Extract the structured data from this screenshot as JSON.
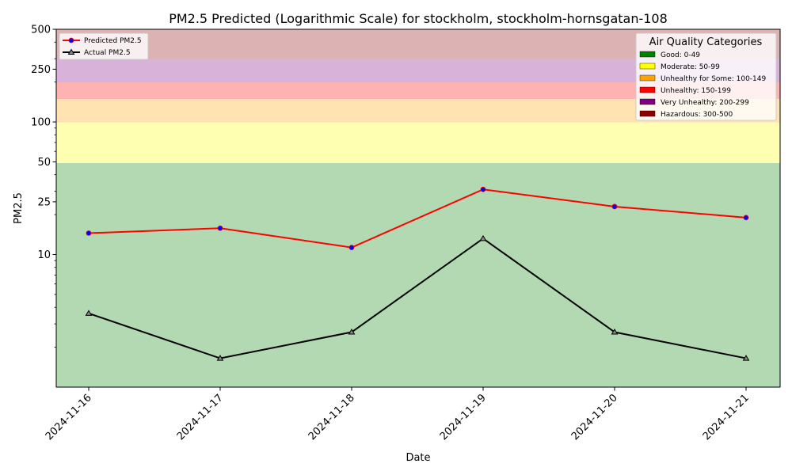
{
  "chart_data": {
    "type": "line",
    "title": "PM2.5 Predicted (Logarithmic Scale) for stockholm, stockholm-hornsgatan-108",
    "xlabel": "Date",
    "ylabel": "PM2.5",
    "y_scale": "log",
    "ylim": [
      1,
      500
    ],
    "y_ticks": [
      10,
      25,
      50,
      100,
      250,
      500
    ],
    "x": [
      "2024-11-16",
      "2024-11-17",
      "2024-11-18",
      "2024-11-19",
      "2024-11-20",
      "2024-11-21"
    ],
    "series": [
      {
        "name": "Predicted PM2.5",
        "color": "#ff0000",
        "marker_color": "#0000ff",
        "marker": "circle",
        "values": [
          14.5,
          15.8,
          11.3,
          31.0,
          23.0,
          19.0
        ]
      },
      {
        "name": "Actual PM2.5",
        "color": "#000000",
        "marker": "triangle",
        "values": [
          3.6,
          1.65,
          2.6,
          13.2,
          2.6,
          1.65
        ]
      }
    ],
    "legend_position": "top-left",
    "categories_legend": {
      "title": "Air Quality Categories",
      "position": "top-right",
      "items": [
        {
          "label": "Good: 0-49",
          "color": "#008000",
          "from": 0,
          "to": 49
        },
        {
          "label": "Moderate: 50-99",
          "color": "#ffff00",
          "from": 49,
          "to": 99
        },
        {
          "label": "Unhealthy for Some: 100-149",
          "color": "#ffa500",
          "from": 99,
          "to": 149
        },
        {
          "label": "Unhealthy: 150-199",
          "color": "#ff0000",
          "from": 149,
          "to": 199
        },
        {
          "label": "Very Unhealthy: 200-299",
          "color": "#800080",
          "from": 199,
          "to": 299
        },
        {
          "label": "Hazardous: 300-500",
          "color": "#8b0000",
          "from": 299,
          "to": 500
        }
      ]
    }
  }
}
